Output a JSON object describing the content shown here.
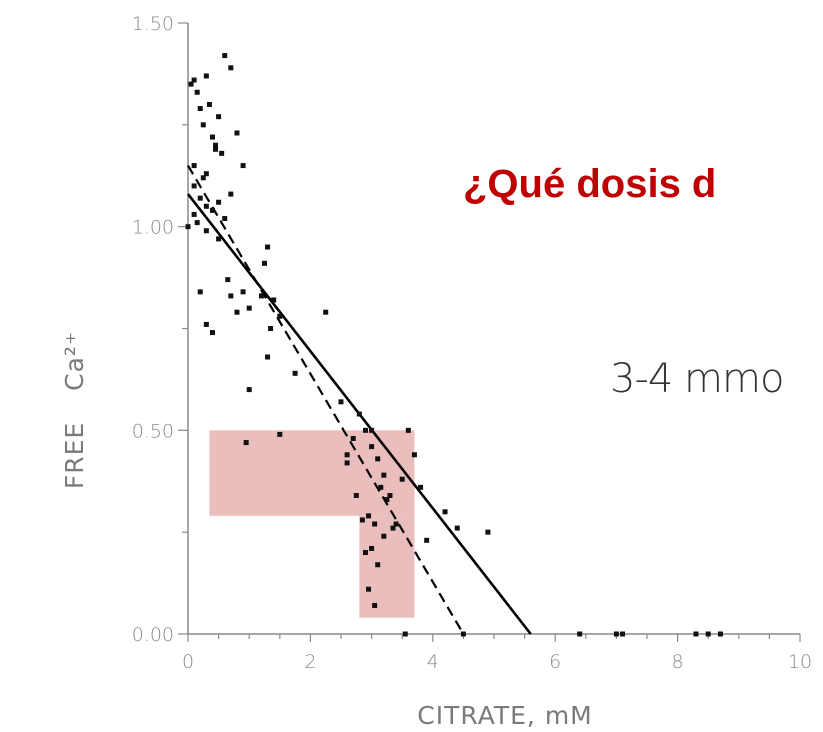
{
  "chart_data": {
    "type": "scatter",
    "title": "",
    "xlabel": "CITRATE,  mM",
    "ylabel": "FREE",
    "ylabel_superscript": "Ca²⁺",
    "xlim": [
      0,
      10
    ],
    "ylim": [
      0,
      1.5
    ],
    "x_ticks": [
      "0",
      "2",
      "4",
      "6",
      "8",
      "10"
    ],
    "y_ticks": [
      "0.00",
      "0.50",
      "1.00",
      "1.50"
    ],
    "grid": false,
    "series": [
      {
        "kind": "points",
        "x": [
          0.05,
          0.1,
          0.15,
          0.2,
          0.25,
          0.3,
          0.35,
          0.4,
          0.45,
          0.5,
          0.55,
          0.6,
          0.7,
          0.8,
          0.9,
          0.1,
          0.2,
          0.3,
          0.4,
          0.5,
          0.6,
          0.7,
          0.2,
          0.3,
          0.4,
          0.1,
          0.15,
          0.3,
          0.5,
          0.65,
          0.8,
          1.0,
          0.3,
          0.25,
          0.45,
          1.25,
          1.3,
          1.2,
          1.4,
          1.5,
          1.0,
          0.9,
          0.7,
          0.95,
          1.5,
          1.3,
          1.35,
          1.75,
          2.25,
          2.5,
          2.6,
          2.7,
          2.8,
          2.9,
          3.0,
          3.1,
          3.2,
          3.3,
          3.5,
          3.6,
          3.7,
          3.8,
          2.6,
          2.75,
          2.85,
          2.95,
          3.05,
          3.15,
          3.25,
          3.35,
          2.9,
          3.0,
          3.1,
          3.2,
          2.95,
          3.05,
          3.4,
          3.9,
          4.2,
          4.9,
          3.0,
          3.55,
          4.4,
          4.5,
          6.4,
          7.0,
          7.1,
          8.3,
          8.5,
          8.7,
          0.0,
          0.1
        ],
        "y": [
          1.35,
          1.36,
          1.33,
          1.29,
          1.25,
          1.37,
          1.3,
          1.22,
          1.19,
          1.27,
          1.18,
          1.42,
          1.39,
          1.23,
          1.15,
          1.1,
          1.07,
          1.05,
          1.04,
          1.06,
          1.02,
          1.08,
          0.84,
          0.76,
          0.74,
          1.03,
          1.01,
          0.99,
          0.97,
          0.87,
          0.79,
          0.8,
          1.13,
          1.12,
          1.2,
          0.91,
          0.95,
          0.83,
          0.82,
          0.78,
          0.6,
          0.84,
          0.83,
          0.47,
          0.49,
          0.68,
          0.75,
          0.64,
          0.79,
          0.57,
          0.44,
          0.48,
          0.54,
          0.5,
          0.46,
          0.43,
          0.39,
          0.34,
          0.38,
          0.5,
          0.44,
          0.36,
          0.42,
          0.34,
          0.28,
          0.29,
          0.27,
          0.36,
          0.33,
          0.26,
          0.2,
          0.21,
          0.17,
          0.24,
          0.11,
          0.07,
          0.27,
          0.23,
          0.3,
          0.25,
          0.5,
          0.0,
          0.26,
          0.0,
          0.0,
          0.0,
          0.0,
          0.0,
          0.0,
          0.0,
          1.0,
          1.15
        ]
      },
      {
        "kind": "regression-solid",
        "x": [
          0,
          5.6
        ],
        "y": [
          1.08,
          0
        ]
      },
      {
        "kind": "regression-dashed",
        "x": [
          0,
          4.5
        ],
        "y": [
          1.15,
          0
        ]
      }
    ],
    "highlight_regions": [
      {
        "x": [
          0.35,
          3.7
        ],
        "y": [
          0.29,
          0.5
        ]
      },
      {
        "x": [
          2.8,
          3.7
        ],
        "y": [
          0.04,
          0.29
        ]
      }
    ],
    "highlight_color": "#e8b3b3"
  },
  "overlay": {
    "title": "¿Qué dosis d",
    "text": "3-4 mmo"
  },
  "colors": {
    "points": "#111111",
    "axis": "#8a8a8a",
    "title": "#c00000",
    "text": "#333333"
  }
}
